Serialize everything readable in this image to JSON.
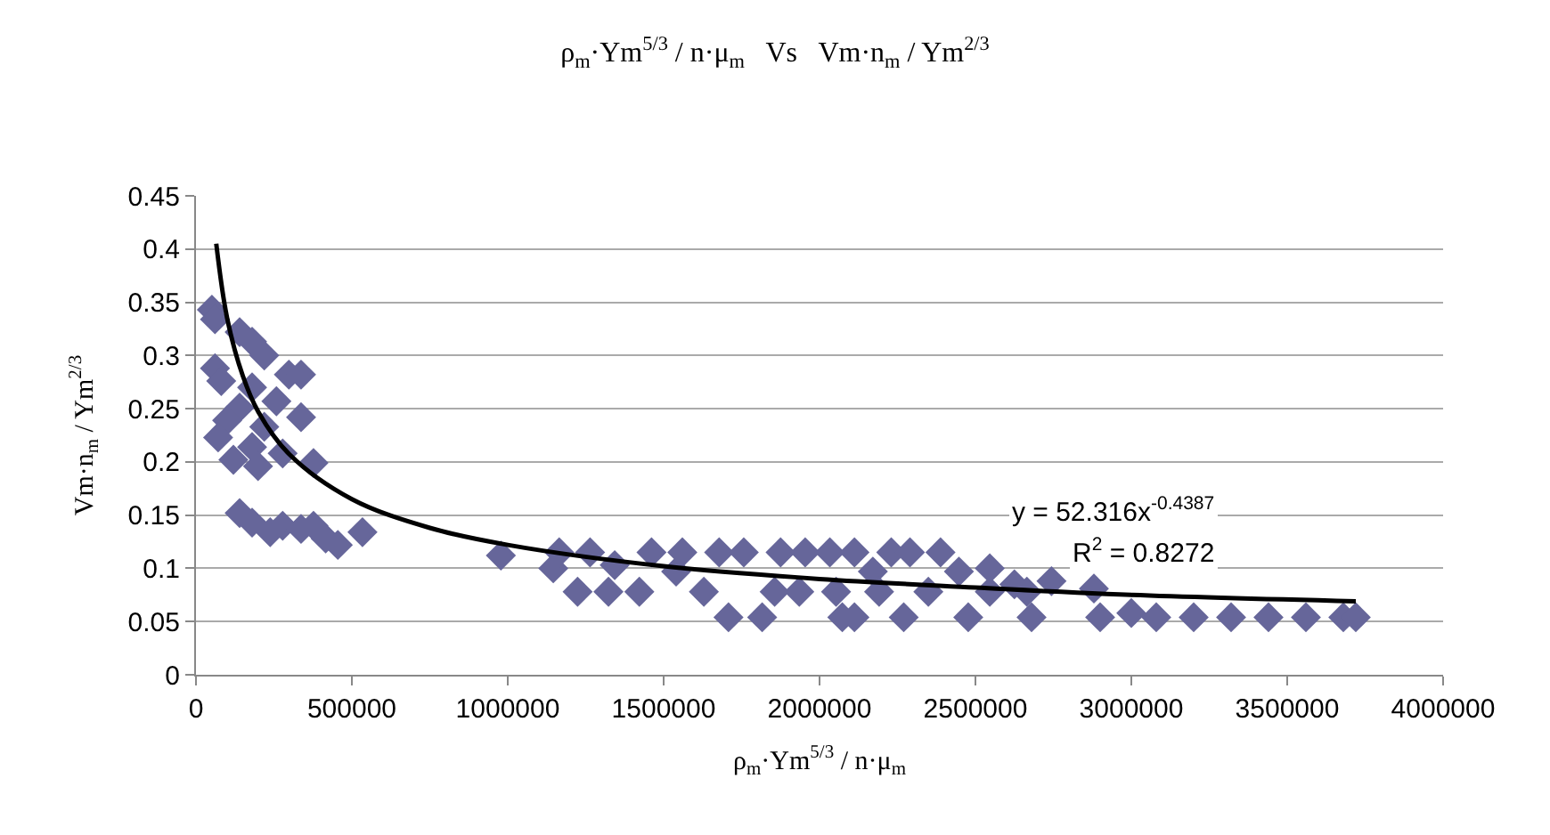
{
  "chart_data": {
    "type": "scatter",
    "title": "ρ$_{m}$·Ym$^{5/3}$ / n·μ$_{m}$   Vs   Vm·n$_{m}$ / Ym$^{2/3}$",
    "xlabel": "ρ$_{m}$·Ym$^{5/3}$ / n·μ$_{m}$",
    "ylabel": "Vm·n$_{m}$ / Ym$^{2/3}$",
    "annotations": [
      "y = 52.316x$^{-0.4387}$",
      "R$^{2}$ = 0.8272"
    ],
    "xlim": [
      0,
      4000000
    ],
    "xticks": [
      0,
      500000,
      1000000,
      1500000,
      2000000,
      2500000,
      3000000,
      3500000,
      4000000
    ],
    "ylim": [
      0,
      0.45
    ],
    "yticks": [
      0,
      0.05,
      0.1,
      0.15,
      0.2,
      0.25,
      0.3,
      0.35,
      0.4,
      0.45
    ],
    "grid": "y",
    "legend": false,
    "marker": "diamond",
    "series": [
      {
        "color": "#66669a",
        "x": [
          51000,
          61000,
          140000,
          180000,
          219000,
          298000,
          337000,
          61000,
          81000,
          180000,
          258000,
          140000,
          337000,
          100000,
          219000,
          71000,
          180000,
          278000,
          377000,
          120000,
          199000,
          140000,
          180000,
          278000,
          377000,
          455000,
          534000,
          238000,
          337000,
          416000,
          978000,
          1146000,
          1165000,
          1224000,
          1264000,
          1323000,
          1343000,
          1422000,
          1461000,
          1540000,
          1560000,
          1629000,
          1678000,
          1708000,
          1757000,
          1816000,
          1856000,
          1875000,
          1935000,
          1954000,
          2033000,
          2053000,
          2073000,
          2112000,
          2112000,
          2171000,
          2191000,
          2230000,
          2270000,
          2290000,
          2349000,
          2388000,
          2447000,
          2477000,
          2546000,
          2546000,
          2625000,
          2665000,
          2680000,
          2744000,
          2880000,
          2900000,
          3000000,
          3080000,
          3200000,
          3320000,
          3440000,
          3560000,
          3680000,
          3720000
        ],
        "values": [
          0.343,
          0.334,
          0.322,
          0.313,
          0.3,
          0.282,
          0.282,
          0.288,
          0.276,
          0.27,
          0.257,
          0.251,
          0.242,
          0.239,
          0.233,
          0.223,
          0.214,
          0.208,
          0.199,
          0.202,
          0.196,
          0.152,
          0.143,
          0.14,
          0.14,
          0.122,
          0.134,
          0.134,
          0.137,
          0.128,
          0.112,
          0.1,
          0.115,
          0.078,
          0.115,
          0.078,
          0.103,
          0.078,
          0.115,
          0.097,
          0.115,
          0.078,
          0.115,
          0.054,
          0.115,
          0.054,
          0.078,
          0.115,
          0.078,
          0.115,
          0.115,
          0.078,
          0.054,
          0.115,
          0.054,
          0.097,
          0.078,
          0.115,
          0.054,
          0.115,
          0.078,
          0.115,
          0.097,
          0.054,
          0.1,
          0.078,
          0.085,
          0.078,
          0.054,
          0.088,
          0.081,
          0.054,
          0.058,
          0.054,
          0.054,
          0.054,
          0.054,
          0.054,
          0.054,
          0.054
        ]
      },
      {
        "type": "line",
        "marker": "none",
        "color": "#000000",
        "x": [
          65000,
          100000,
          150000,
          200000,
          300000,
          500000,
          750000,
          1000000,
          1500000,
          2000000,
          2500000,
          3000000,
          3720000
        ],
        "values": [
          0.405,
          0.335,
          0.281,
          0.247,
          0.207,
          0.165,
          0.138,
          0.122,
          0.102,
          0.09,
          0.082,
          0.075,
          0.069
        ]
      }
    ]
  }
}
